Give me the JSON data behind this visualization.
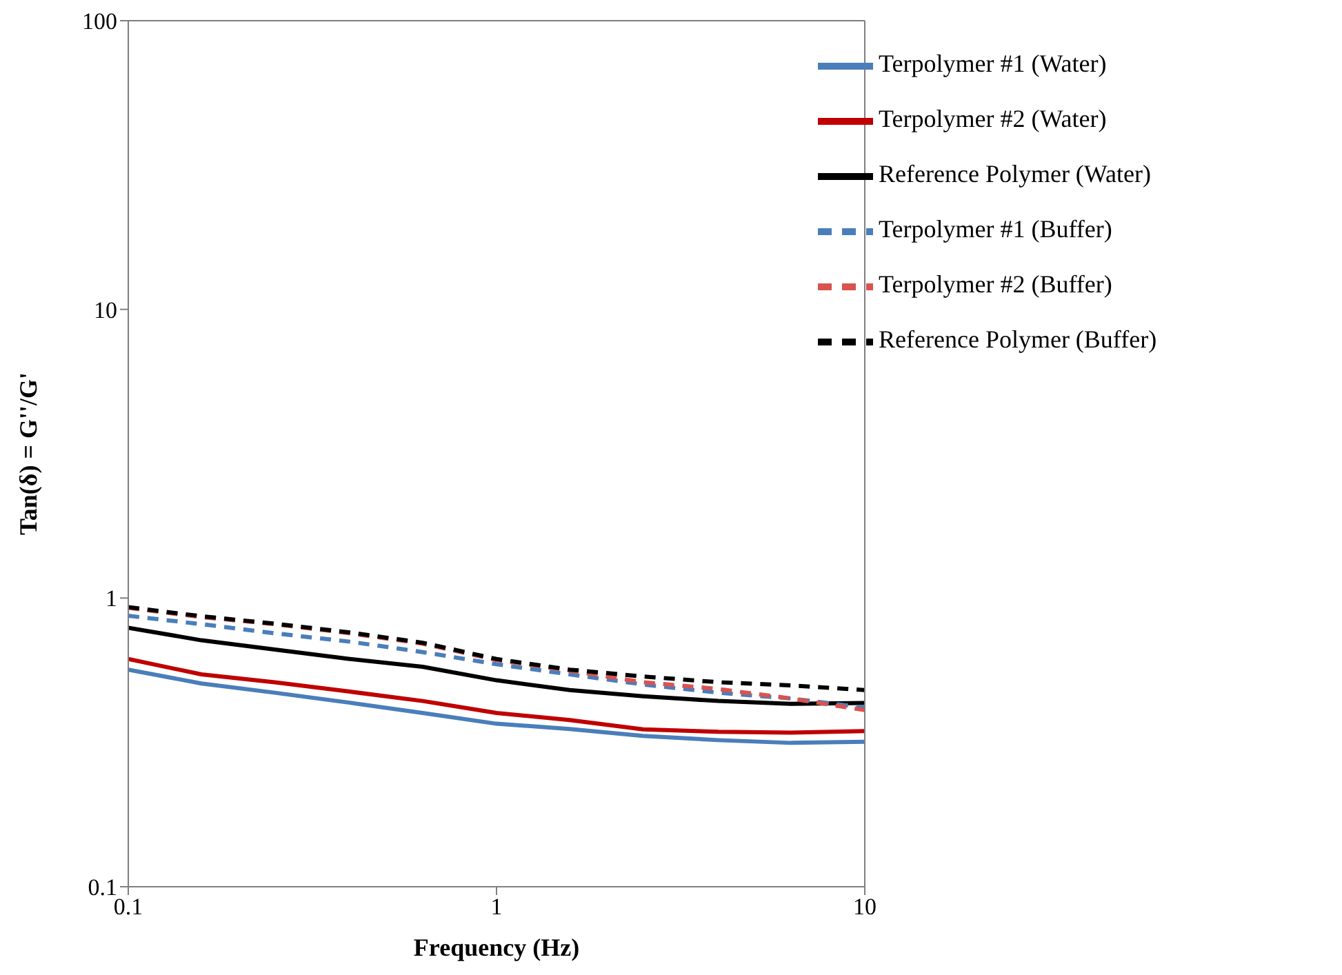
{
  "chart_data": {
    "type": "line",
    "xlabel": "Frequency (Hz)",
    "ylabel": "Tan(δ) = G''/G'",
    "log": "xy",
    "xlim": [
      0.1,
      10
    ],
    "xticks": [
      0.1,
      1,
      10
    ],
    "ylim": [
      0.1,
      100
    ],
    "yticks": [
      0.1,
      1,
      10,
      100
    ],
    "grid": false,
    "legend": "top right",
    "marker": "none",
    "x": [
      0.1,
      0.158,
      0.25,
      0.4,
      0.63,
      1,
      1.58,
      2.5,
      4,
      6.3,
      10
    ],
    "series": [
      {
        "name": "Terpolymer #1 (Water)",
        "color": "#4a7ebb",
        "line_style": "solid",
        "values": [
          0.565,
          0.506,
          0.47,
          0.434,
          0.4,
          0.367,
          0.352,
          0.333,
          0.322,
          0.315,
          0.318
        ]
      },
      {
        "name": "Terpolymer #2 (Water)",
        "color": "#c00000",
        "line_style": "solid",
        "values": [
          0.615,
          0.544,
          0.511,
          0.474,
          0.44,
          0.4,
          0.378,
          0.351,
          0.344,
          0.342,
          0.346
        ]
      },
      {
        "name": "Reference Polymer (Water)",
        "color": "#000000",
        "line_style": "solid",
        "values": [
          0.789,
          0.714,
          0.663,
          0.615,
          0.578,
          0.519,
          0.48,
          0.457,
          0.44,
          0.43,
          0.433
        ]
      },
      {
        "name": "Terpolymer #1 (Buffer)",
        "color": "#4a7ebb",
        "line_style": "dashed",
        "values": [
          0.868,
          0.812,
          0.755,
          0.706,
          0.65,
          0.59,
          0.544,
          0.502,
          0.47,
          0.449,
          0.417
        ]
      },
      {
        "name": "Terpolymer #2 (Buffer)",
        "color": "#d9534f",
        "line_style": "dashed",
        "values": [
          0.925,
          0.859,
          0.812,
          0.755,
          0.695,
          0.61,
          0.561,
          0.511,
          0.484,
          0.449,
          0.409
        ]
      },
      {
        "name": "Reference Polymer (Buffer)",
        "color": "#000000",
        "line_style": "dashed",
        "values": [
          0.93,
          0.865,
          0.815,
          0.76,
          0.7,
          0.615,
          0.565,
          0.535,
          0.511,
          0.498,
          0.48
        ]
      }
    ]
  }
}
